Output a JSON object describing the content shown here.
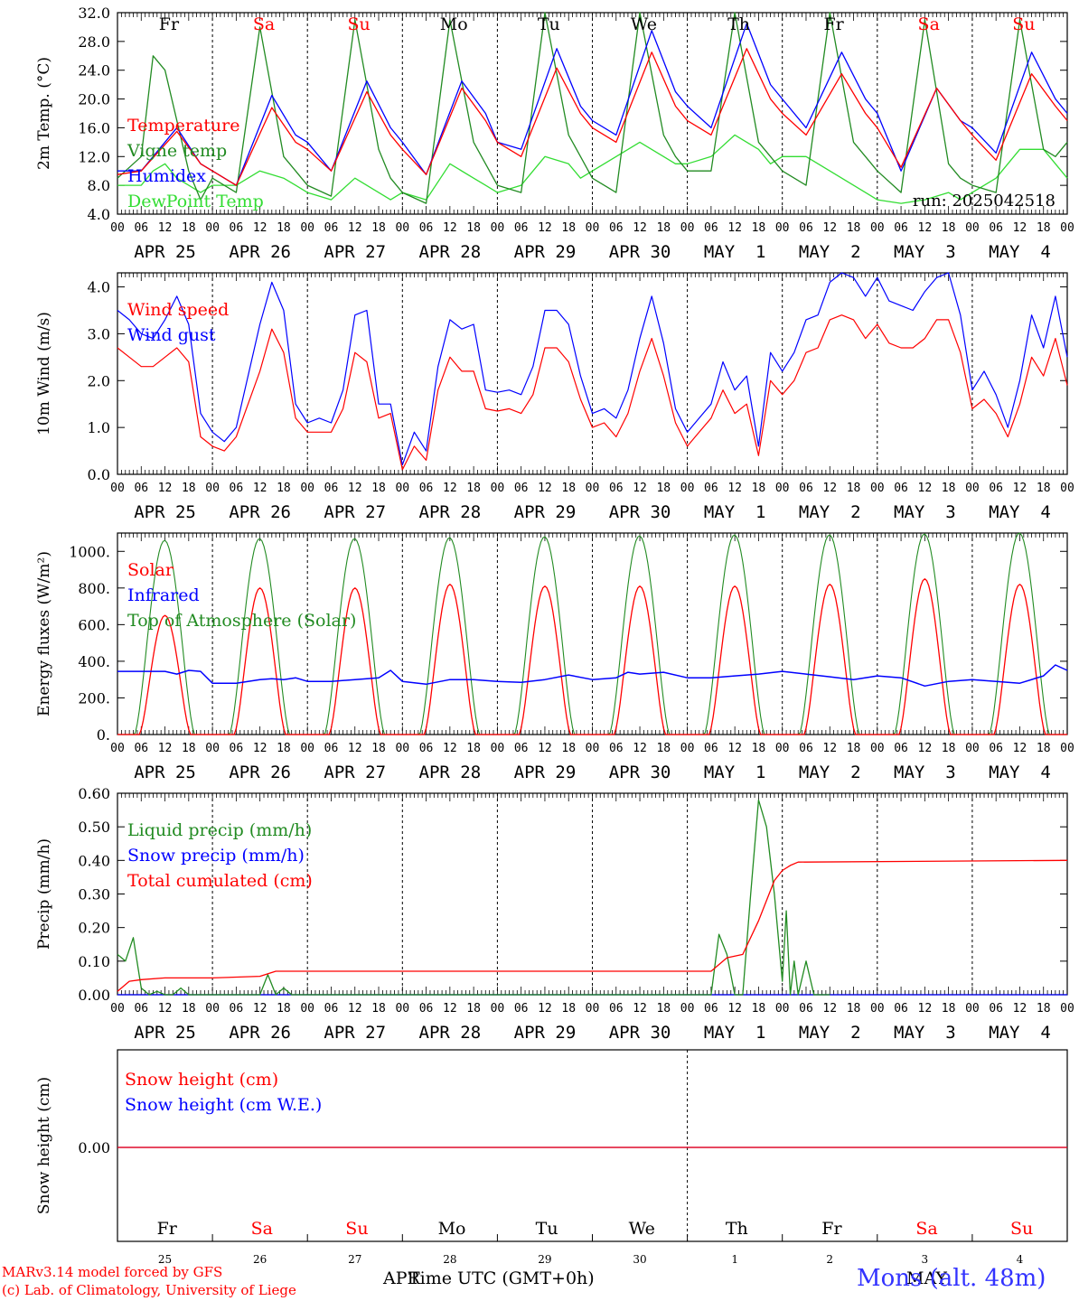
{
  "colors": {
    "red": "#ff0000",
    "green": "#228b22",
    "blue": "#0000ff",
    "lightgreen": "#33dd33",
    "black": "#000000",
    "weekend": "#ff0000"
  },
  "chart_data": [
    {
      "type": "line",
      "ylabel": "2m Temp. (°C)",
      "ylim": [
        4,
        32
      ],
      "ytick_labels": [
        "4.0",
        "8.0",
        "12.0",
        "16.0",
        "20.0",
        "24.0",
        "28.0",
        "32.0"
      ],
      "x_unit": "hours since APR 25 00 UTC",
      "run_label": "run: 2025042518",
      "day_labels": [
        "Fr",
        "Sa",
        "Su",
        "Mo",
        "Tu",
        "We",
        "Th",
        "Fr",
        "Sa",
        "Su"
      ],
      "weekend": [
        false,
        true,
        true,
        false,
        false,
        false,
        false,
        false,
        true,
        true
      ],
      "series": [
        {
          "name": "Temperature",
          "color": "red",
          "x": [
            0,
            6,
            15,
            21,
            24,
            30,
            39,
            45,
            48,
            54,
            63,
            69,
            72,
            78,
            87,
            93,
            96,
            102,
            111,
            117,
            120,
            126,
            135,
            141,
            144,
            150,
            159,
            165,
            168,
            174,
            183,
            189,
            192,
            198,
            207,
            213,
            216,
            222,
            231,
            237,
            240
          ],
          "y": [
            9.5,
            10,
            15.5,
            11,
            10,
            8,
            18.8,
            14,
            13,
            10,
            21,
            15,
            13,
            9.5,
            21.5,
            17,
            14,
            12,
            24.3,
            18,
            16,
            14,
            26.5,
            19,
            17,
            15,
            27,
            20,
            18,
            15,
            23.5,
            18,
            16,
            10.5,
            21.5,
            17,
            15,
            11.5,
            23.5,
            19,
            17
          ]
        },
        {
          "name": "Vigne temp",
          "color": "green",
          "x": [
            0,
            6,
            9,
            12,
            18,
            21,
            24,
            30,
            36,
            42,
            45,
            48,
            54,
            60,
            66,
            69,
            72,
            78,
            84,
            90,
            93,
            96,
            102,
            108,
            114,
            117,
            120,
            126,
            132,
            138,
            141,
            144,
            150,
            156,
            162,
            165,
            168,
            174,
            180,
            186,
            189,
            192,
            198,
            204,
            210,
            213,
            216,
            222,
            228,
            234,
            237,
            240
          ],
          "y": [
            9,
            12,
            26,
            24,
            10,
            6,
            9,
            7,
            30,
            12,
            10,
            8,
            6.5,
            31,
            13,
            9,
            7,
            5.5,
            31,
            14,
            11,
            8,
            7,
            32,
            15,
            12,
            9,
            7,
            32,
            15,
            12,
            10,
            10,
            32,
            14,
            12,
            10,
            8,
            32,
            14,
            12,
            10,
            7,
            31,
            11,
            9,
            8,
            7,
            31,
            13,
            12,
            14
          ]
        },
        {
          "name": "Humidex",
          "color": "blue",
          "x": [
            0,
            6,
            15,
            21,
            24,
            30,
            39,
            45,
            48,
            54,
            63,
            69,
            72,
            78,
            87,
            93,
            96,
            102,
            111,
            117,
            120,
            126,
            135,
            141,
            144,
            150,
            159,
            165,
            168,
            174,
            183,
            189,
            192,
            198,
            207,
            213,
            216,
            222,
            231,
            237,
            240
          ],
          "y": [
            10,
            10,
            16,
            11,
            10,
            8,
            20.5,
            15,
            14,
            10,
            22.5,
            16,
            14,
            9.5,
            22.5,
            18,
            14,
            13,
            27,
            19,
            17,
            15,
            29.5,
            21,
            19,
            16,
            30.5,
            22,
            20,
            16,
            26.5,
            20,
            18,
            10,
            21.5,
            17,
            16,
            12.5,
            26.5,
            20,
            18
          ]
        },
        {
          "name": "DewPoint Temp",
          "color": "lightgreen",
          "x": [
            0,
            6,
            9,
            12,
            15,
            18,
            21,
            24,
            30,
            36,
            42,
            45,
            48,
            54,
            60,
            66,
            69,
            72,
            78,
            84,
            90,
            93,
            96,
            102,
            108,
            114,
            117,
            120,
            126,
            132,
            138,
            141,
            144,
            150,
            156,
            162,
            165,
            168,
            174,
            180,
            186,
            189,
            192,
            198,
            204,
            210,
            213,
            216,
            222,
            228,
            234,
            237,
            240
          ],
          "y": [
            8,
            8,
            10,
            11,
            9,
            8,
            7,
            8,
            8,
            10,
            9,
            8,
            7,
            6,
            9,
            7,
            6,
            7,
            6,
            11,
            9,
            8,
            7,
            8,
            12,
            11,
            9,
            10,
            12,
            14,
            12,
            11,
            11,
            12,
            15,
            13,
            11,
            12,
            12,
            10,
            8,
            7,
            6,
            5.5,
            6,
            7,
            6,
            7,
            9,
            13,
            13,
            11,
            9
          ]
        }
      ]
    },
    {
      "type": "line",
      "ylabel": "10m Wind (m/s)",
      "ylim": [
        0,
        4.3
      ],
      "ytick_labels": [
        "0.0",
        "1.0",
        "2.0",
        "3.0",
        "4.0"
      ],
      "series": [
        {
          "name": "Wind speed",
          "color": "red",
          "x": [
            0,
            3,
            6,
            9,
            12,
            15,
            18,
            21,
            24,
            27,
            30,
            36,
            39,
            42,
            45,
            48,
            51,
            54,
            57,
            60,
            63,
            66,
            69,
            72,
            75,
            78,
            81,
            84,
            87,
            90,
            93,
            96,
            99,
            102,
            105,
            108,
            111,
            114,
            117,
            120,
            123,
            126,
            129,
            132,
            135,
            138,
            141,
            144,
            147,
            150,
            153,
            156,
            159,
            162,
            165,
            168,
            171,
            174,
            177,
            180,
            183,
            186,
            189,
            192,
            195,
            198,
            201,
            204,
            207,
            210,
            213,
            216,
            219,
            222,
            225,
            228,
            231,
            234,
            237,
            240
          ],
          "y": [
            2.7,
            2.5,
            2.3,
            2.3,
            2.5,
            2.7,
            2.4,
            0.8,
            0.6,
            0.5,
            0.8,
            2.2,
            3.1,
            2.6,
            1.2,
            0.9,
            0.9,
            0.9,
            1.4,
            2.6,
            2.4,
            1.2,
            1.3,
            0.1,
            0.6,
            0.3,
            1.8,
            2.5,
            2.2,
            2.2,
            1.4,
            1.35,
            1.4,
            1.3,
            1.7,
            2.7,
            2.7,
            2.4,
            1.6,
            1.0,
            1.1,
            0.8,
            1.3,
            2.2,
            2.9,
            2.1,
            1.1,
            0.6,
            0.9,
            1.2,
            1.8,
            1.3,
            1.5,
            0.4,
            2.0,
            1.7,
            2.0,
            2.6,
            2.7,
            3.3,
            3.4,
            3.3,
            2.9,
            3.2,
            2.8,
            2.7,
            2.7,
            2.9,
            3.3,
            3.3,
            2.6,
            1.4,
            1.6,
            1.3,
            0.8,
            1.5,
            2.5,
            2.1,
            2.9,
            1.9
          ]
        },
        {
          "name": "Wind gust",
          "color": "blue",
          "x": [
            0,
            3,
            6,
            9,
            12,
            15,
            18,
            21,
            24,
            27,
            30,
            36,
            39,
            42,
            45,
            48,
            51,
            54,
            57,
            60,
            63,
            66,
            69,
            72,
            75,
            78,
            81,
            84,
            87,
            90,
            93,
            96,
            99,
            102,
            105,
            108,
            111,
            114,
            117,
            120,
            123,
            126,
            129,
            132,
            135,
            138,
            141,
            144,
            147,
            150,
            153,
            156,
            159,
            162,
            165,
            168,
            171,
            174,
            177,
            180,
            183,
            186,
            189,
            192,
            195,
            198,
            201,
            204,
            207,
            210,
            213,
            216,
            219,
            222,
            225,
            228,
            231,
            234,
            237,
            240
          ],
          "y": [
            3.5,
            3.3,
            3.0,
            2.9,
            3.3,
            3.8,
            3.2,
            1.3,
            0.9,
            0.7,
            1.0,
            3.2,
            4.1,
            3.5,
            1.5,
            1.1,
            1.2,
            1.1,
            1.8,
            3.4,
            3.5,
            1.5,
            1.5,
            0.2,
            0.9,
            0.5,
            2.3,
            3.3,
            3.1,
            3.2,
            1.8,
            1.75,
            1.8,
            1.7,
            2.3,
            3.5,
            3.5,
            3.2,
            2.1,
            1.3,
            1.4,
            1.2,
            1.8,
            2.9,
            3.8,
            2.8,
            1.4,
            0.9,
            1.2,
            1.5,
            2.4,
            1.8,
            2.1,
            0.6,
            2.6,
            2.2,
            2.6,
            3.3,
            3.4,
            4.1,
            4.3,
            4.2,
            3.8,
            4.2,
            3.7,
            3.6,
            3.5,
            3.9,
            4.2,
            4.3,
            3.4,
            1.8,
            2.2,
            1.7,
            1.0,
            2.0,
            3.4,
            2.7,
            3.8,
            2.5
          ]
        }
      ]
    },
    {
      "type": "line",
      "ylabel": "Energy fluxes (W/m²)",
      "ylim": [
        0,
        1100
      ],
      "ytick_labels": [
        "0.",
        "200.",
        "400.",
        "600.",
        "800.",
        "1000."
      ],
      "daily_peaks": {
        "Solar": [
          650,
          800,
          800,
          820,
          810,
          810,
          810,
          820,
          850,
          820
        ],
        "Top of Atmosphere (Solar)": [
          1060,
          1070,
          1070,
          1075,
          1080,
          1085,
          1090,
          1090,
          1095,
          1100
        ]
      },
      "series": [
        {
          "name": "Solar",
          "color": "red"
        },
        {
          "name": "Infrared",
          "color": "blue",
          "x": [
            0,
            6,
            12,
            15,
            18,
            21,
            24,
            30,
            33,
            36,
            39,
            42,
            45,
            48,
            51,
            54,
            60,
            66,
            69,
            72,
            78,
            84,
            90,
            96,
            102,
            108,
            114,
            120,
            126,
            129,
            132,
            138,
            144,
            150,
            156,
            162,
            168,
            174,
            180,
            186,
            192,
            198,
            204,
            210,
            216,
            222,
            228,
            234,
            237,
            240
          ],
          "y": [
            345,
            345,
            345,
            330,
            350,
            345,
            280,
            280,
            290,
            300,
            305,
            300,
            310,
            290,
            290,
            290,
            300,
            310,
            350,
            290,
            275,
            300,
            300,
            290,
            285,
            300,
            325,
            300,
            310,
            340,
            330,
            340,
            310,
            310,
            320,
            330,
            345,
            330,
            315,
            300,
            320,
            310,
            265,
            290,
            300,
            290,
            280,
            320,
            380,
            350
          ]
        },
        {
          "name": "Top of Atmosphere (Solar)",
          "color": "green"
        }
      ]
    },
    {
      "type": "line",
      "ylabel": "Precip (mm/h)",
      "ylim": [
        0,
        0.6
      ],
      "ytick_labels": [
        "0.00",
        "0.10",
        "0.20",
        "0.30",
        "0.40",
        "0.50",
        "0.60"
      ],
      "series": [
        {
          "name": "Liquid precip (mm/h)",
          "color": "green",
          "x": [
            0,
            2,
            4,
            6,
            8,
            10,
            12,
            14,
            16,
            18,
            36,
            38,
            40,
            42,
            44,
            150,
            152,
            154,
            156,
            158,
            160,
            162,
            164,
            166,
            168,
            169,
            170,
            171,
            172,
            174,
            176,
            178,
            180
          ],
          "y": [
            0.12,
            0.1,
            0.17,
            0.02,
            0.0,
            0.01,
            0.0,
            0.0,
            0.02,
            0.0,
            0.0,
            0.06,
            0.0,
            0.02,
            0.0,
            0.0,
            0.18,
            0.12,
            0.0,
            0.0,
            0.3,
            0.58,
            0.5,
            0.3,
            0.04,
            0.25,
            0.0,
            0.1,
            0.0,
            0.1,
            0.0,
            0.0,
            0.0
          ]
        },
        {
          "name": "Snow precip (mm/h)",
          "color": "blue",
          "x": [
            0,
            240
          ],
          "y": [
            0,
            0
          ]
        },
        {
          "name": "Total cumulated (cm)",
          "color": "red",
          "x": [
            0,
            3,
            6,
            12,
            24,
            36,
            40,
            48,
            150,
            154,
            158,
            162,
            166,
            168,
            170,
            172,
            240
          ],
          "y": [
            0.01,
            0.04,
            0.045,
            0.05,
            0.05,
            0.055,
            0.07,
            0.07,
            0.07,
            0.11,
            0.12,
            0.22,
            0.34,
            0.37,
            0.385,
            0.395,
            0.4
          ]
        }
      ]
    },
    {
      "type": "line",
      "ylabel": "Snow height (cm)",
      "ytick_labels": [
        "0.00"
      ],
      "series": [
        {
          "name": "Snow height (cm)",
          "color": "red",
          "x": [
            0,
            240
          ],
          "y": [
            0,
            0
          ]
        },
        {
          "name": "Snow height (cm W.E.)",
          "color": "blue",
          "x": [
            0,
            240
          ],
          "y": [
            0,
            0
          ]
        }
      ]
    }
  ],
  "x_axis": {
    "hour_labels": [
      "00",
      "06",
      "12",
      "18"
    ],
    "end_label": "00",
    "date_labels": [
      "APR 25",
      "APR 26",
      "APR 27",
      "APR 28",
      "APR 29",
      "APR 30",
      "MAY  1",
      "MAY  2",
      "MAY  3",
      "MAY  4"
    ],
    "day_numbers": [
      "25",
      "26",
      "27",
      "28",
      "29",
      "30",
      "1",
      "2",
      "3",
      "4"
    ]
  },
  "footer": {
    "model_line1": "MARv3.14 model forced by GFS",
    "model_line2": "(c) Lab. of Climatology, University of Liege",
    "month_left": "APR",
    "time_label": "Time UTC (GMT+0h)",
    "month_right": "MAY",
    "station": "Mons (alt. 48m)"
  }
}
